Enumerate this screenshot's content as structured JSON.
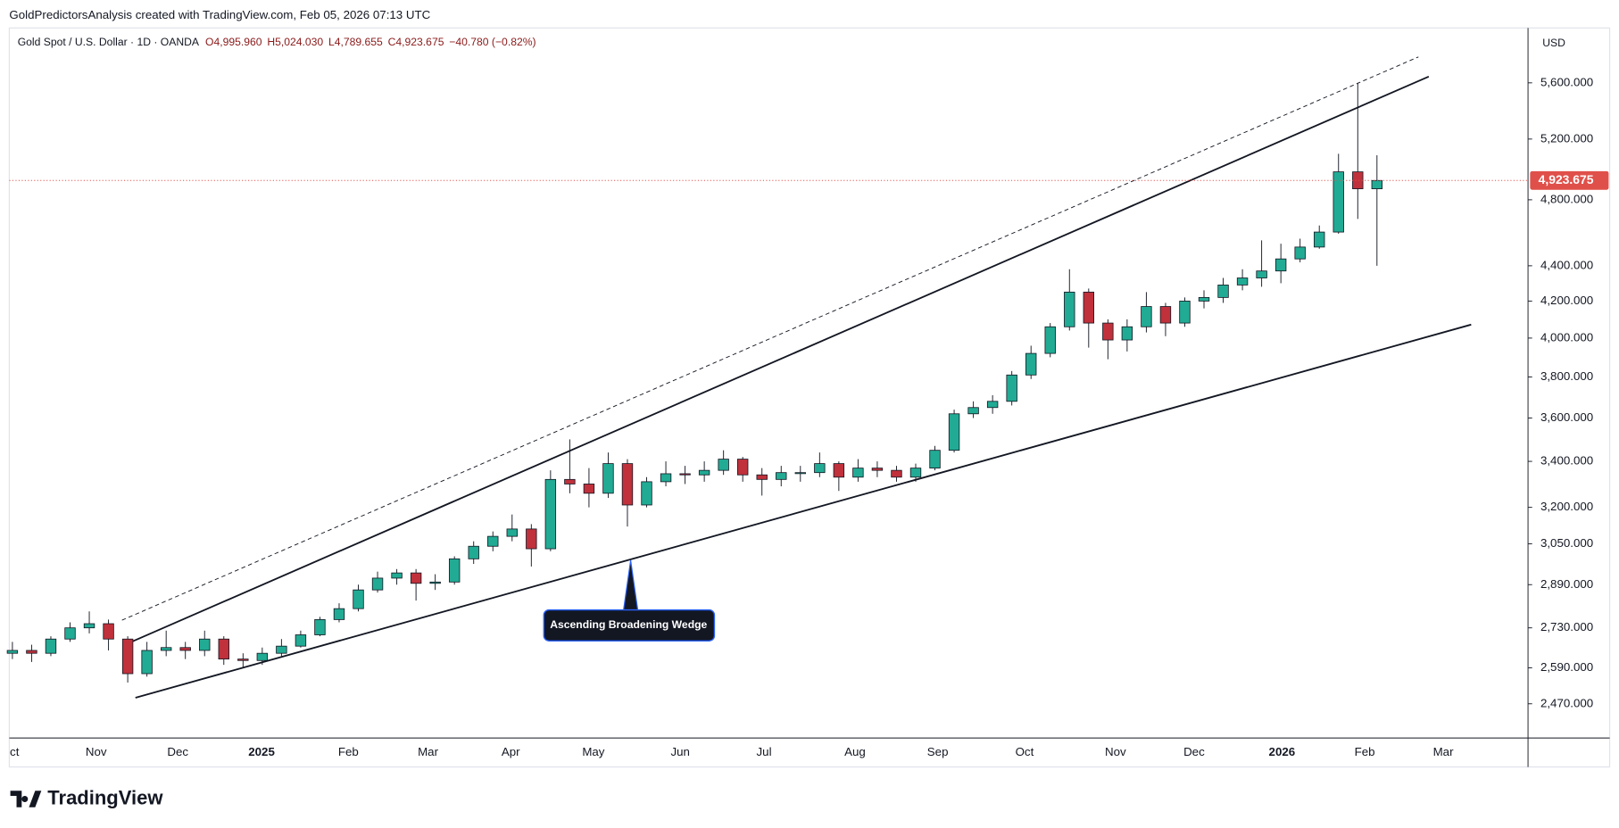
{
  "header": {
    "credit": "GoldPredictorsAnalysis created with TradingView.com, Feb 05, 2026 07:13 UTC",
    "brand": "TradingView"
  },
  "chart_data": {
    "type": "candlestick",
    "symbol": "Gold Spot / U.S. Dollar · 1D · OANDA",
    "ohlc_labels": [
      "O4,995.960",
      "H5,024.030",
      "L4,789.655",
      "C4,923.675",
      "−40.780 (−0.82%)"
    ],
    "currency": "USD",
    "annotation": "Ascending Broadening Wedge",
    "last_price_label": "4,923.675",
    "up_color": "#22ab94",
    "down_color": "#c0313c",
    "last_color": "#e0504a",
    "log_scale": true,
    "grid": false,
    "ylim": [
      2361,
      6020
    ],
    "yticks": [
      {
        "value": 2470,
        "label": "2,470.000"
      },
      {
        "value": 2590,
        "label": "2,590.000"
      },
      {
        "value": 2730,
        "label": "2,730.000"
      },
      {
        "value": 2890,
        "label": "2,890.000"
      },
      {
        "value": 3050,
        "label": "3,050.000"
      },
      {
        "value": 3200,
        "label": "3,200.000"
      },
      {
        "value": 3400,
        "label": "3,400.000"
      },
      {
        "value": 3600,
        "label": "3,600.000"
      },
      {
        "value": 3800,
        "label": "3,800.000"
      },
      {
        "value": 4000,
        "label": "4,000.000"
      },
      {
        "value": 4200,
        "label": "4,200.000"
      },
      {
        "value": 4400,
        "label": "4,400.000"
      },
      {
        "value": 4800,
        "label": "4,800.000"
      },
      {
        "value": 5200,
        "label": "5,200.000"
      },
      {
        "value": 5600,
        "label": "5,600.000"
      }
    ],
    "x_labels": [
      "ct",
      "Nov",
      "Dec",
      "2025",
      "Feb",
      "Mar",
      "Apr",
      "May",
      "Jun",
      "Jul",
      "Aug",
      "Sep",
      "Oct",
      "Nov",
      "Dec",
      "2026",
      "Feb",
      "Mar"
    ],
    "open": [
      2640,
      2650,
      2640,
      2690,
      2730,
      2745,
      2690,
      2570,
      2650,
      2660,
      2650,
      2690,
      2620,
      2615,
      2640,
      2665,
      2705,
      2760,
      2800,
      2870,
      2915,
      2935,
      2895,
      2900,
      2990,
      3040,
      3080,
      3110,
      3030,
      3320,
      3300,
      3260,
      3390,
      3210,
      3310,
      3345,
      3340,
      3360,
      3410,
      3340,
      3320,
      3350,
      3350,
      3390,
      3330,
      3370,
      3360,
      3330,
      3370,
      3450,
      3620,
      3650,
      3680,
      3810,
      3920,
      4060,
      4250,
      4080,
      3990,
      4060,
      4170,
      4080,
      4200,
      4220,
      4290,
      4330,
      4370,
      4440,
      4510,
      4600,
      4980,
      4870
    ],
    "high": [
      2680,
      2670,
      2700,
      2750,
      2790,
      2760,
      2700,
      2680,
      2720,
      2680,
      2720,
      2700,
      2640,
      2660,
      2690,
      2720,
      2770,
      2820,
      2890,
      2940,
      2950,
      2950,
      2930,
      3000,
      3060,
      3100,
      3170,
      3130,
      3360,
      3500,
      3370,
      3440,
      3410,
      3330,
      3400,
      3380,
      3400,
      3450,
      3420,
      3370,
      3380,
      3380,
      3440,
      3400,
      3410,
      3400,
      3380,
      3390,
      3470,
      3640,
      3680,
      3710,
      3830,
      3960,
      4080,
      4380,
      4270,
      4100,
      4100,
      4250,
      4190,
      4220,
      4260,
      4330,
      4380,
      4550,
      4530,
      4560,
      4640,
      5100,
      5600,
      5090
    ],
    "low": [
      2620,
      2610,
      2630,
      2680,
      2710,
      2650,
      2540,
      2560,
      2630,
      2620,
      2630,
      2600,
      2590,
      2600,
      2630,
      2660,
      2700,
      2750,
      2790,
      2860,
      2890,
      2830,
      2870,
      2890,
      2970,
      3020,
      3060,
      2960,
      3020,
      3260,
      3200,
      3240,
      3120,
      3200,
      3290,
      3300,
      3310,
      3340,
      3310,
      3250,
      3290,
      3310,
      3330,
      3270,
      3310,
      3330,
      3310,
      3310,
      3360,
      3440,
      3600,
      3620,
      3660,
      3790,
      3900,
      4040,
      3950,
      3890,
      3930,
      4030,
      4010,
      4060,
      4160,
      4190,
      4260,
      4280,
      4300,
      4420,
      4500,
      4590,
      4680,
      4400
    ],
    "close": [
      2650,
      2640,
      2690,
      2730,
      2745,
      2690,
      2570,
      2650,
      2660,
      2650,
      2690,
      2620,
      2615,
      2640,
      2665,
      2705,
      2760,
      2800,
      2870,
      2915,
      2935,
      2895,
      2900,
      2990,
      3040,
      3080,
      3110,
      3030,
      3320,
      3300,
      3260,
      3390,
      3210,
      3310,
      3345,
      3340,
      3360,
      3410,
      3340,
      3320,
      3350,
      3350,
      3390,
      3330,
      3370,
      3360,
      3330,
      3370,
      3450,
      3620,
      3650,
      3680,
      3810,
      3920,
      4060,
      4250,
      4080,
      3990,
      4060,
      4170,
      4080,
      4200,
      4220,
      4290,
      4330,
      4370,
      4440,
      4510,
      4600,
      4980,
      4870,
      4923.675
    ]
  }
}
